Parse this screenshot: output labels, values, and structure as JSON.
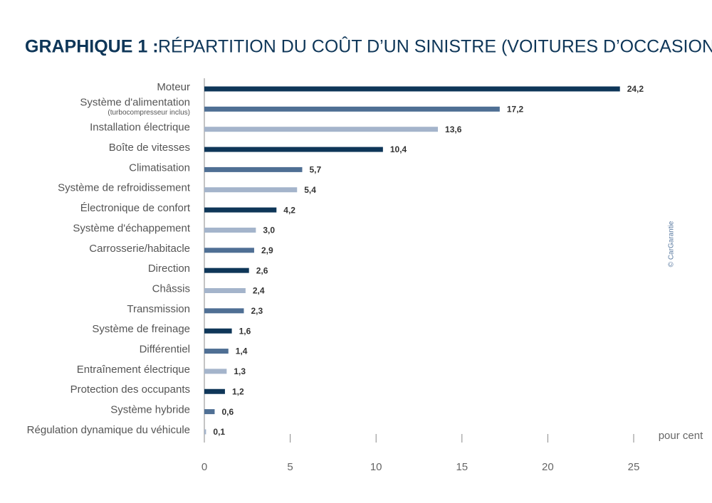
{
  "chart_data": {
    "type": "bar",
    "orientation": "horizontal",
    "title": "GRAPHIQUE 1 :",
    "subtitle": "RÉPARTITION DU COÛT D’UN SINISTRE (VOITURES D’OCCASION)",
    "categories": [
      "Moteur",
      "Système d'alimentation",
      "Installation électrique",
      "Boîte de vitesses",
      "Climatisation",
      "Système de refroidissement",
      "Électronique de confort",
      "Système d'échappement",
      "Carrosserie/habitacle",
      "Direction",
      "Châssis",
      "Transmission",
      "Système de freinage",
      "Différentiel",
      "Entraînement électrique",
      "Protection des occupants",
      "Système hybride",
      "Régulation dynamique du véhicule"
    ],
    "category_sublabels": [
      null,
      "(turbocompresseur inclus)",
      null,
      null,
      null,
      null,
      null,
      null,
      null,
      null,
      null,
      null,
      null,
      null,
      null,
      null,
      null,
      null
    ],
    "values": [
      24.2,
      17.2,
      13.6,
      10.4,
      5.7,
      5.4,
      4.2,
      3.0,
      2.9,
      2.6,
      2.4,
      2.3,
      1.6,
      1.4,
      1.3,
      1.2,
      0.6,
      0.1
    ],
    "value_labels": [
      "24,2",
      "17,2",
      "13,6",
      "10,4",
      "5,7",
      "5,4",
      "4,2",
      "3,0",
      "2,9",
      "2,6",
      "2,4",
      "2,3",
      "1,6",
      "1,4",
      "1,3",
      "1,2",
      "0,6",
      "0,1"
    ],
    "colors": [
      "#0e3658",
      "#4f6f94",
      "#a4b4cb",
      "#0e3658",
      "#4f6f94",
      "#a4b4cb",
      "#0e3658",
      "#a4b4cb",
      "#4f6f94",
      "#0e3658",
      "#a4b4cb",
      "#4f6f94",
      "#0e3658",
      "#4f6f94",
      "#a4b4cb",
      "#0e3658",
      "#4f6f94",
      "#a4b4cb"
    ],
    "xlim": [
      0,
      25
    ],
    "xticks": [
      0,
      5,
      10,
      15,
      20,
      25
    ],
    "xlabel": "pour cent",
    "credit": "© CarGarantie"
  }
}
